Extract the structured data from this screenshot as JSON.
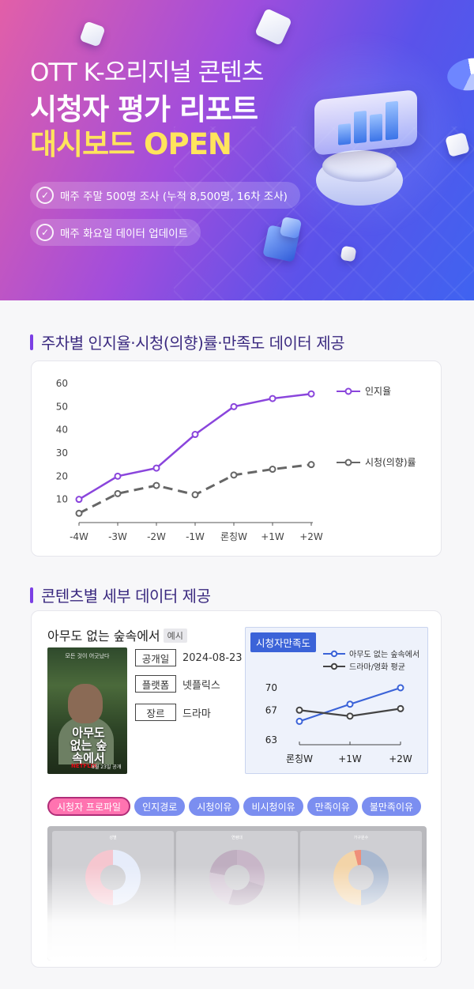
{
  "hero": {
    "line1": "OTT K-오리지널 콘텐츠",
    "line2": "시청자 평가 리포트",
    "line3": "대시보드 OPEN",
    "pills": [
      "매주 주말 500명 조사 (누적 8,500명, 16차 조사)",
      "매주 화요일 데이터 업데이트"
    ]
  },
  "section1": {
    "heading": "주차별 인지율·시청(의향)률·만족도 데이터 제공"
  },
  "chart_data": [
    {
      "type": "line",
      "x": [
        "-4W",
        "-3W",
        "-2W",
        "-1W",
        "론칭W",
        "+1W",
        "+2W"
      ],
      "ylim": [
        0,
        60
      ],
      "yticks": [
        10,
        20,
        30,
        40,
        50,
        60
      ],
      "legend": "right",
      "series": [
        {
          "name": "인지율",
          "values": [
            10,
            20,
            23.5,
            38,
            50,
            53.5,
            55.5
          ],
          "color": "#8a45dc",
          "style": "solid"
        },
        {
          "name": "시청(의향)률",
          "values": [
            4,
            12.5,
            16,
            12,
            20.5,
            23,
            25
          ],
          "color": "#666666",
          "style": "dashed"
        }
      ]
    },
    {
      "type": "line",
      "title": "시청자만족도",
      "x": [
        "론칭W",
        "+1W",
        "+2W"
      ],
      "ylim": [
        63,
        70
      ],
      "yticks": [
        63,
        67,
        70
      ],
      "legend": "top",
      "series": [
        {
          "name": "아무도 없는 숲속에서",
          "values": [
            65.5,
            67.8,
            70
          ],
          "color": "#3b63d8"
        },
        {
          "name": "드라마/영화 평균",
          "values": [
            67,
            66.2,
            67.2
          ],
          "color": "#444444"
        }
      ]
    }
  ],
  "section2": {
    "heading": "콘텐츠별 세부 데이터 제공"
  },
  "content": {
    "title": "아무도 없는 숲속에서",
    "tag": "예시",
    "poster": {
      "title": "아무도 없는 숲속에서",
      "tagline": "모든 것이 어긋났다",
      "brand": "NETFLIX",
      "date": "8월 23일 공개"
    },
    "info": [
      {
        "label": "공개일",
        "value": "2024-08-23"
      },
      {
        "label": "플랫폼",
        "value": "넷플릭스"
      },
      {
        "label": "장르",
        "value": "드라마"
      }
    ],
    "tabs": [
      "시청자 프로파일",
      "인지경로",
      "시청이유",
      "비시청이유",
      "만족이유",
      "불만족이유"
    ],
    "active_tab": 0,
    "panels": [
      {
        "title": "성별"
      },
      {
        "title": "연령대"
      },
      {
        "title": "가구원수"
      }
    ]
  }
}
